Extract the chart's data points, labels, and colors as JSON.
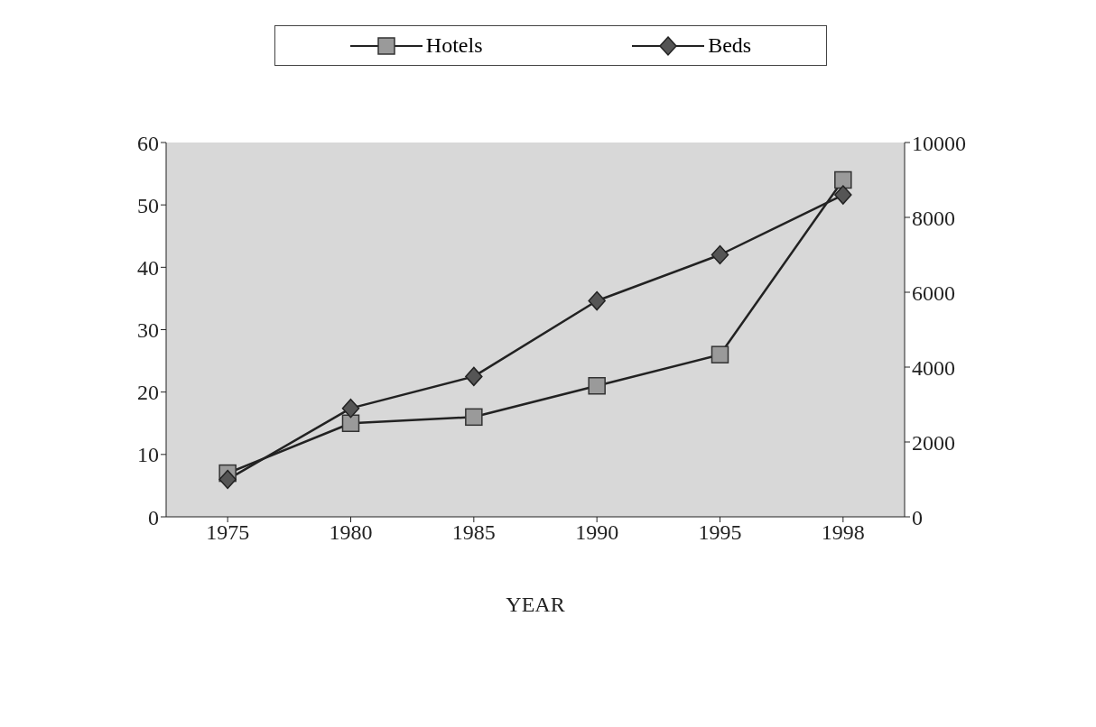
{
  "chart_data": {
    "type": "line",
    "xlabel": "YEAR",
    "categories": [
      "1975",
      "1980",
      "1985",
      "1990",
      "1995",
      "1998"
    ],
    "series": [
      {
        "name": "Hotels",
        "color": "#222222",
        "marker": "square",
        "values": [
          7,
          15,
          16,
          21,
          26,
          54
        ]
      },
      {
        "name": "Beds",
        "color": "#222222",
        "marker": "diamond",
        "axis": "y2",
        "values": [
          1000,
          2900,
          3750,
          5770,
          7000,
          8600
        ]
      }
    ],
    "ylim": [
      0,
      60
    ],
    "yticks": [
      0,
      10,
      20,
      30,
      40,
      50,
      60
    ],
    "y2lim": [
      0,
      10000
    ],
    "y2ticks": [
      0,
      2000,
      4000,
      6000,
      8000,
      10000
    ],
    "grid": false,
    "legend": "top",
    "line_style": "solid"
  }
}
